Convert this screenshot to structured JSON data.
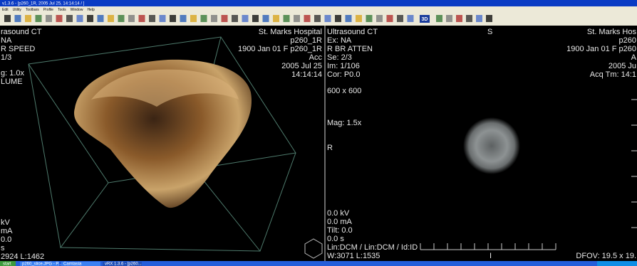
{
  "window": {
    "title": "v1.3.6 - [p260_1R, 2005 Jul 25, 14:14:14 / ]"
  },
  "menu": [
    "Edit",
    "Utility",
    "Toolbars",
    "Profile",
    "Tools",
    "Window",
    "Help"
  ],
  "toolbar": {
    "label_3d": "3D"
  },
  "left_view": {
    "top_left": [
      "rasound CT",
      "NA",
      "R SPEED",
      "1/3",
      "g: 1.0x",
      "LUME"
    ],
    "top_right": [
      "St. Marks Hospital",
      "p260_1R",
      "1900 Jan 01  F  p260_1R",
      "Acc",
      "2005 Jul 25",
      "14:14:14"
    ],
    "bottom_left": [
      "kV",
      "mA",
      "0.0",
      "s",
      "2924  L:1462"
    ]
  },
  "right_view": {
    "top_left": [
      "Ultrasound CT",
      "Ex: NA",
      "R BR ATTEN",
      "Se: 2/3",
      "Im: 1/106",
      "Cor: P0.0",
      "600 x 600",
      "Mag: 1.5x"
    ],
    "top_center": "S",
    "top_right": [
      "St. Marks Hos",
      "p260",
      "1900 Jan 01  F  p260",
      "A",
      "2005 Ju",
      "Acq Tm: 14:1"
    ],
    "middle_left": "R",
    "bottom_left": [
      "0.0 kV",
      "0.0 mA",
      "Tilt: 0.0",
      "0.0 s",
      "Lin:DCM / Lin:DCM / Id:ID",
      "W:3071  L:1535"
    ],
    "bottom_center": "I",
    "bottom_right": "DFOV: 19.5 x 19."
  },
  "taskbar": {
    "start": "start",
    "items": [
      "p260_slice.JPG - P...",
      "Camtasia",
      "vRX 1.3.6 - [p260..."
    ]
  }
}
